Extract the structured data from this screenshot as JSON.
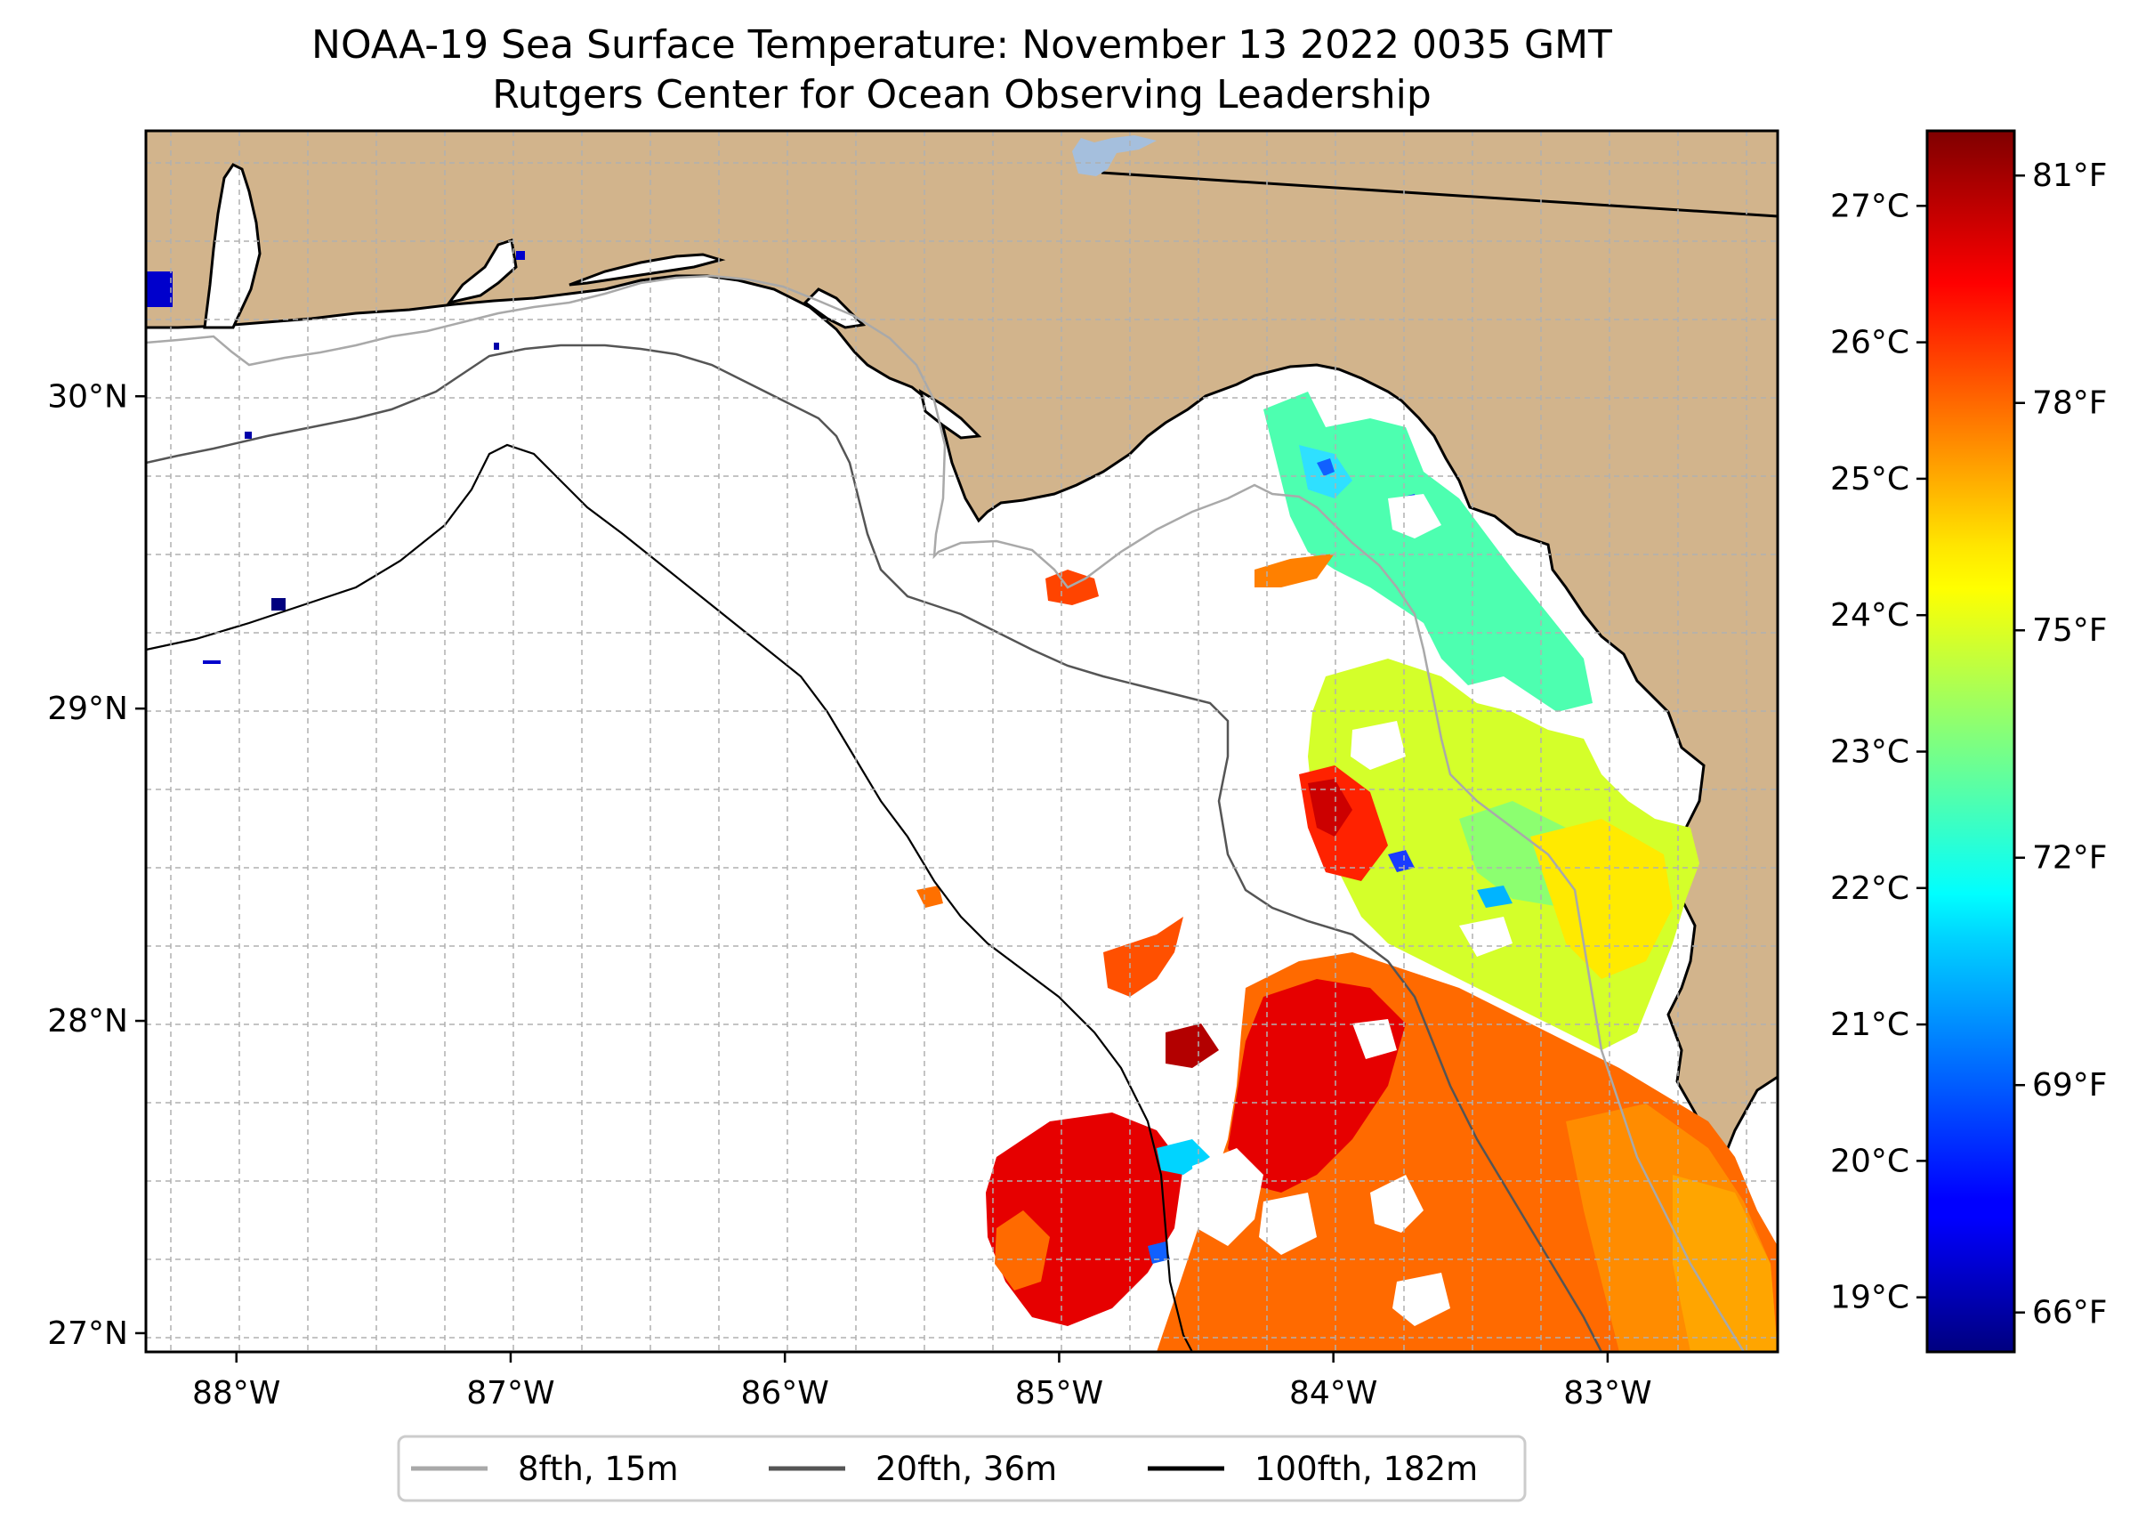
{
  "title": {
    "line1": "NOAA-19 Sea Surface Temperature: November 13 2022 0035 GMT",
    "line2": "Rutgers Center for Ocean Observing Leadership"
  },
  "map": {
    "lon_range": [
      -88.33,
      -82.38
    ],
    "lat_range": [
      26.94,
      30.85
    ],
    "land_color": "#d2b48c",
    "ocean_color": "#ffffff",
    "lat_labels": [
      {
        "lat": 30,
        "text": "30°N"
      },
      {
        "lat": 29,
        "text": "29°N"
      },
      {
        "lat": 28,
        "text": "28°N"
      },
      {
        "lat": 27,
        "text": "27°N"
      }
    ],
    "lon_labels": [
      {
        "lon": -88,
        "text": "88°W"
      },
      {
        "lon": -87,
        "text": "87°W"
      },
      {
        "lon": -86,
        "text": "86°W"
      },
      {
        "lon": -85,
        "text": "85°W"
      },
      {
        "lon": -84,
        "text": "84°W"
      },
      {
        "lon": -83,
        "text": "83°W"
      }
    ]
  },
  "colorbar": {
    "colormap": "jet",
    "min_c": 18.6,
    "max_c": 27.55,
    "celsius_ticks": [
      {
        "v": 27,
        "text": "27°C"
      },
      {
        "v": 26,
        "text": "26°C"
      },
      {
        "v": 25,
        "text": "25°C"
      },
      {
        "v": 24,
        "text": "24°C"
      },
      {
        "v": 23,
        "text": "23°C"
      },
      {
        "v": 22,
        "text": "22°C"
      },
      {
        "v": 21,
        "text": "21°C"
      },
      {
        "v": 20,
        "text": "20°C"
      },
      {
        "v": 19,
        "text": "19°C"
      }
    ],
    "fahrenheit_ticks": [
      {
        "v": 81,
        "text": "81°F"
      },
      {
        "v": 78,
        "text": "78°F"
      },
      {
        "v": 75,
        "text": "75°F"
      },
      {
        "v": 72,
        "text": "72°F"
      },
      {
        "v": 69,
        "text": "69°F"
      },
      {
        "v": 66,
        "text": "66°F"
      }
    ]
  },
  "legend": {
    "items": [
      {
        "label": "8fth, 15m",
        "color": "#a9a9a9"
      },
      {
        "label": "20fth, 36m",
        "color": "#555555"
      },
      {
        "label": "100fth, 182m",
        "color": "#000000"
      }
    ]
  }
}
